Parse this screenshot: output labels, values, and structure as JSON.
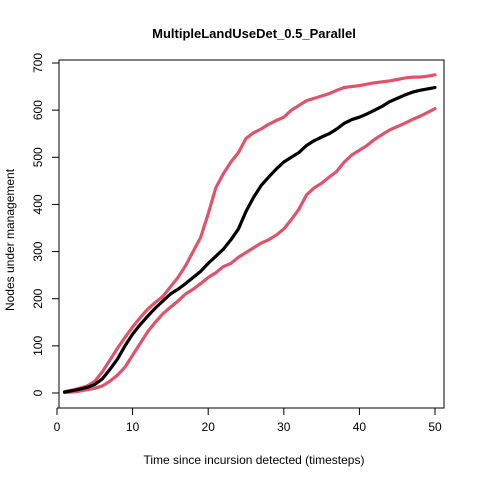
{
  "chart_data": {
    "type": "line",
    "title": "MultipleLandUseDet_0.5_Parallel",
    "xlabel": "Time since incursion detected (timesteps)",
    "ylabel": "Nodes under management",
    "xlim": [
      1,
      50
    ],
    "ylim": [
      0,
      700
    ],
    "xticks": [
      0,
      10,
      20,
      30,
      40,
      50
    ],
    "yticks": [
      0,
      100,
      200,
      300,
      400,
      500,
      600,
      700
    ],
    "grid": false,
    "legend": "none",
    "x": [
      1,
      2,
      3,
      4,
      5,
      6,
      7,
      8,
      9,
      10,
      11,
      12,
      13,
      14,
      15,
      16,
      17,
      18,
      19,
      20,
      21,
      22,
      23,
      24,
      25,
      26,
      27,
      28,
      29,
      30,
      31,
      32,
      33,
      34,
      35,
      36,
      37,
      38,
      39,
      40,
      41,
      42,
      43,
      44,
      45,
      46,
      47,
      48,
      49,
      50
    ],
    "series": [
      {
        "color": "#000000",
        "values": [
          2,
          5,
          8,
          12,
          18,
          30,
          50,
          72,
          100,
          125,
          145,
          163,
          180,
          195,
          210,
          220,
          232,
          245,
          258,
          275,
          290,
          305,
          325,
          348,
          385,
          415,
          440,
          458,
          475,
          490,
          500,
          510,
          525,
          535,
          543,
          550,
          560,
          572,
          580,
          585,
          592,
          600,
          608,
          618,
          625,
          632,
          638,
          642,
          645,
          648
        ]
      },
      {
        "color": "#DF536B",
        "values": [
          3,
          6,
          10,
          15,
          25,
          45,
          70,
          95,
          118,
          140,
          160,
          178,
          192,
          205,
          225,
          245,
          270,
          300,
          330,
          380,
          435,
          465,
          490,
          510,
          540,
          552,
          560,
          570,
          578,
          585,
          600,
          610,
          620,
          625,
          630,
          635,
          642,
          648,
          650,
          652,
          655,
          658,
          660,
          662,
          665,
          668,
          670,
          670,
          672,
          675
        ]
      },
      {
        "color": "#DF536B",
        "values": [
          1,
          2,
          4,
          7,
          10,
          15,
          25,
          38,
          55,
          80,
          105,
          130,
          150,
          168,
          182,
          195,
          210,
          220,
          232,
          245,
          255,
          268,
          275,
          288,
          298,
          308,
          318,
          325,
          335,
          348,
          368,
          390,
          420,
          435,
          445,
          458,
          470,
          490,
          505,
          515,
          525,
          538,
          548,
          558,
          565,
          572,
          580,
          587,
          595,
          603
        ]
      }
    ]
  }
}
